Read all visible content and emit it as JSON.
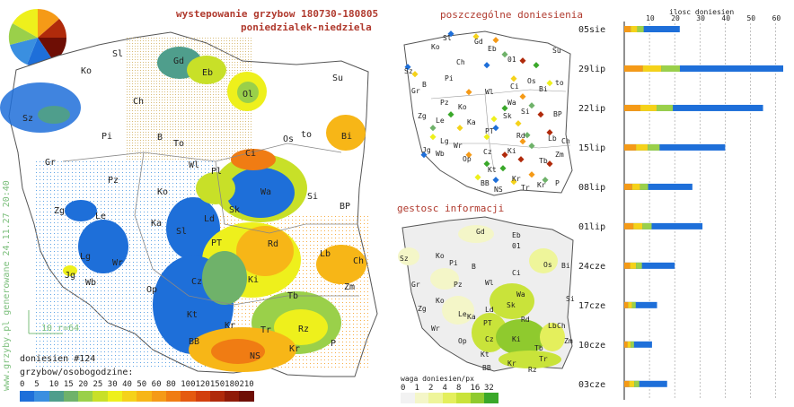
{
  "title": "wystepowanie grzybow 180730-180805",
  "subtitle": "poniedzialek-niedziela",
  "side_text": "www.grzyby.pl generowane 24.11.27 20:40",
  "scale_text": "10 r=64",
  "reports_count": "doniesien #124",
  "legend_main": {
    "title": "grzybow/osobogodzine:",
    "ticks": [
      "0",
      "5",
      "10",
      "15",
      "20",
      "25",
      "30",
      "40",
      "50",
      "60",
      "80",
      "100",
      "120",
      "150",
      "180",
      "210"
    ],
    "colors": [
      "#1e6fd9",
      "#3a8fe0",
      "#4f9e8c",
      "#6fb26a",
      "#9ad04a",
      "#c8e028",
      "#eef01c",
      "#f5d21a",
      "#f7b617",
      "#f59a17",
      "#f07c13",
      "#e55a10",
      "#d23f0d",
      "#b02a0b",
      "#8f1a08",
      "#6e0e05"
    ]
  },
  "map_main": {
    "cities": [
      "Sl",
      "Gd",
      "Eb",
      "Ko",
      "Su",
      "Ol",
      "Ch",
      "Sz",
      "Pi",
      "B",
      "To",
      "Os",
      "to",
      "Bi",
      "Gr",
      "Wl",
      "Pl",
      "Ci",
      "Pz",
      "Ko",
      "Wa",
      "Si",
      "Zg",
      "Le",
      "Ka",
      "Sk",
      "Ld",
      "BP",
      "Sl",
      "PT",
      "Rd",
      "Lg",
      "Wr",
      "Lb",
      "Jg",
      "Wb",
      "Op",
      "Cz",
      "Ki",
      "Ch",
      "Zm",
      "Tb",
      "Kt",
      "Kr",
      "Tr",
      "Rz",
      "BB",
      "NS",
      "Kr",
      "P"
    ]
  },
  "panel_reports": {
    "title": "poszczególne doniesienia",
    "cities": [
      "Sl",
      "Gd",
      "Eb",
      "Ko",
      "Su",
      "Ch",
      "01",
      "Sz",
      "Pi",
      "B",
      "Os",
      "to",
      "Bi",
      "Gr",
      "Wl",
      "Ci",
      "Pz",
      "Ko",
      "Wa",
      "Zg",
      "Le",
      "Ka",
      "Sk",
      "Si",
      "BP",
      "PT",
      "Rd",
      "Lg",
      "Wr",
      "Lb",
      "Ch",
      "Jg",
      "Wb",
      "Op",
      "Cz",
      "Ki",
      "Zm",
      "Kt",
      "Tb",
      "BB",
      "Kr",
      "NS",
      "Tr",
      "Kr",
      "P"
    ]
  },
  "panel_density": {
    "title": "gestosc informacji",
    "legend_title": "waga doniesien/px",
    "ticks": [
      "0",
      "1",
      "2",
      "4",
      "8",
      "16",
      "32"
    ],
    "colors": [
      "#f2f2f2",
      "#f4f6c8",
      "#eef59a",
      "#e4ef5c",
      "#c9e33a",
      "#8fca2e",
      "#3aa82a"
    ],
    "cities": [
      "Gd",
      "Eb",
      "01",
      "Sz",
      "Ko",
      "Bi",
      "Pi",
      "B",
      "Os",
      "Ci",
      "Gr",
      "Pz",
      "Wl",
      "Ko",
      "Wa",
      "Zg",
      "Le",
      "Ka",
      "Sk",
      "Si",
      "Ld",
      "PT",
      "Rd",
      "Lb",
      "Wr",
      "Ch",
      "Op",
      "Cz",
      "Ki",
      "Zm",
      "Kt",
      "Tb",
      "BB",
      "Kr",
      "Tr",
      "Rz"
    ]
  },
  "bar_chart": {
    "title": "ilosc doniesien",
    "x_ticks": [
      "10",
      "20",
      "30",
      "40",
      "50",
      "60"
    ],
    "date_labels": [
      "05sie",
      "29lip",
      "22lip",
      "15lip",
      "08lip",
      "01lip",
      "24cze",
      "17cze",
      "10cze",
      "03cze"
    ]
  },
  "chart_data": {
    "type": "bar",
    "title": "ilosc doniesien",
    "orientation": "horizontal",
    "x_range": [
      0,
      63
    ],
    "categories": [
      "05sie",
      "29lip",
      "22lip",
      "15lip",
      "08lip",
      "01lip",
      "24cze",
      "17cze",
      "10cze",
      "03cze"
    ],
    "values": [
      22,
      63,
      55,
      40,
      27,
      31,
      20,
      13,
      11,
      17
    ]
  }
}
